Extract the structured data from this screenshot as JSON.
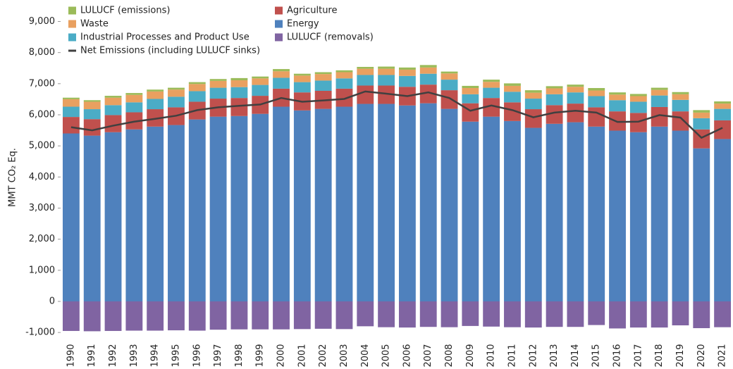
{
  "chart_data": {
    "type": "bar",
    "stacked": true,
    "y_label": "MMT CO₂ Eq.",
    "categories": [
      "1990",
      "1991",
      "1992",
      "1993",
      "1994",
      "1995",
      "1996",
      "1997",
      "1998",
      "1999",
      "2000",
      "2001",
      "2002",
      "2003",
      "2004",
      "2005",
      "2006",
      "2007",
      "2008",
      "2009",
      "2010",
      "2011",
      "2012",
      "2013",
      "2014",
      "2015",
      "2016",
      "2017",
      "2018",
      "2019",
      "2020",
      "2021"
    ],
    "series": [
      {
        "name": "Energy",
        "color": "#4f81bd",
        "values": [
          5400,
          5330,
          5440,
          5530,
          5620,
          5670,
          5850,
          5940,
          5960,
          6030,
          6260,
          6140,
          6190,
          6260,
          6350,
          6350,
          6300,
          6370,
          6190,
          5780,
          5940,
          5800,
          5580,
          5710,
          5760,
          5620,
          5490,
          5440,
          5620,
          5490,
          4920,
          5220
        ]
      },
      {
        "name": "Agriculture",
        "color": "#c0504d",
        "values": [
          530,
          530,
          550,
          550,
          560,
          570,
          570,
          580,
          580,
          580,
          580,
          580,
          580,
          580,
          590,
          590,
          600,
          600,
          600,
          590,
          600,
          600,
          600,
          600,
          600,
          620,
          620,
          620,
          630,
          620,
          610,
          600
        ]
      },
      {
        "name": "Industrial Processes and Product Use",
        "color": "#4bacc6",
        "values": [
          330,
          320,
          320,
          320,
          330,
          340,
          340,
          350,
          350,
          350,
          350,
          330,
          330,
          330,
          340,
          340,
          350,
          350,
          340,
          290,
          330,
          340,
          340,
          350,
          360,
          360,
          360,
          360,
          370,
          370,
          360,
          370
        ]
      },
      {
        "name": "Waste",
        "color": "#e9a060",
        "values": [
          240,
          240,
          240,
          240,
          240,
          230,
          230,
          220,
          220,
          210,
          210,
          210,
          210,
          200,
          200,
          200,
          200,
          200,
          200,
          200,
          190,
          190,
          190,
          190,
          180,
          180,
          180,
          180,
          180,
          180,
          180,
          170
        ]
      },
      {
        "name": "LULUCF (emissions)",
        "color": "#9bbb59",
        "values": [
          50,
          50,
          60,
          60,
          60,
          60,
          60,
          60,
          70,
          60,
          70,
          60,
          60,
          60,
          60,
          70,
          70,
          80,
          60,
          70,
          70,
          80,
          80,
          70,
          70,
          80,
          70,
          70,
          70,
          70,
          80,
          70
        ]
      },
      {
        "name": "LULUCF (removals)",
        "color": "#8064a2",
        "values": [
          -950,
          -960,
          -950,
          -940,
          -940,
          -930,
          -940,
          -910,
          -900,
          -900,
          -900,
          -890,
          -880,
          -890,
          -800,
          -830,
          -840,
          -820,
          -830,
          -790,
          -810,
          -830,
          -840,
          -820,
          -820,
          -760,
          -870,
          -840,
          -840,
          -770,
          -860,
          -830
        ]
      },
      {
        "name": "Net Emissions (including LULUCF sinks)",
        "type": "line",
        "color": "#404040",
        "values": [
          5600,
          5500,
          5650,
          5780,
          5870,
          5970,
          6150,
          6240,
          6290,
          6330,
          6540,
          6420,
          6460,
          6510,
          6750,
          6680,
          6600,
          6720,
          6540,
          6130,
          6300,
          6150,
          5920,
          6070,
          6130,
          6070,
          5770,
          5780,
          5990,
          5910,
          5260,
          5580
        ]
      }
    ],
    "ylim": [
      -1200,
      9600
    ],
    "yticks": [
      {
        "value": -1000,
        "label": "-1,000"
      },
      0,
      {
        "value": 1000,
        "label": "1,000"
      },
      {
        "value": 2000,
        "label": "2,000"
      },
      {
        "value": 3000,
        "label": "3,000"
      },
      {
        "value": 4000,
        "label": "4,000"
      },
      {
        "value": 5000,
        "label": "5,000"
      },
      {
        "value": 6000,
        "label": "6,000"
      },
      {
        "value": 7000,
        "label": "7,000"
      },
      {
        "value": 8000,
        "label": "8,000"
      },
      {
        "value": 9000,
        "label": "9,000"
      }
    ],
    "grid": false
  }
}
